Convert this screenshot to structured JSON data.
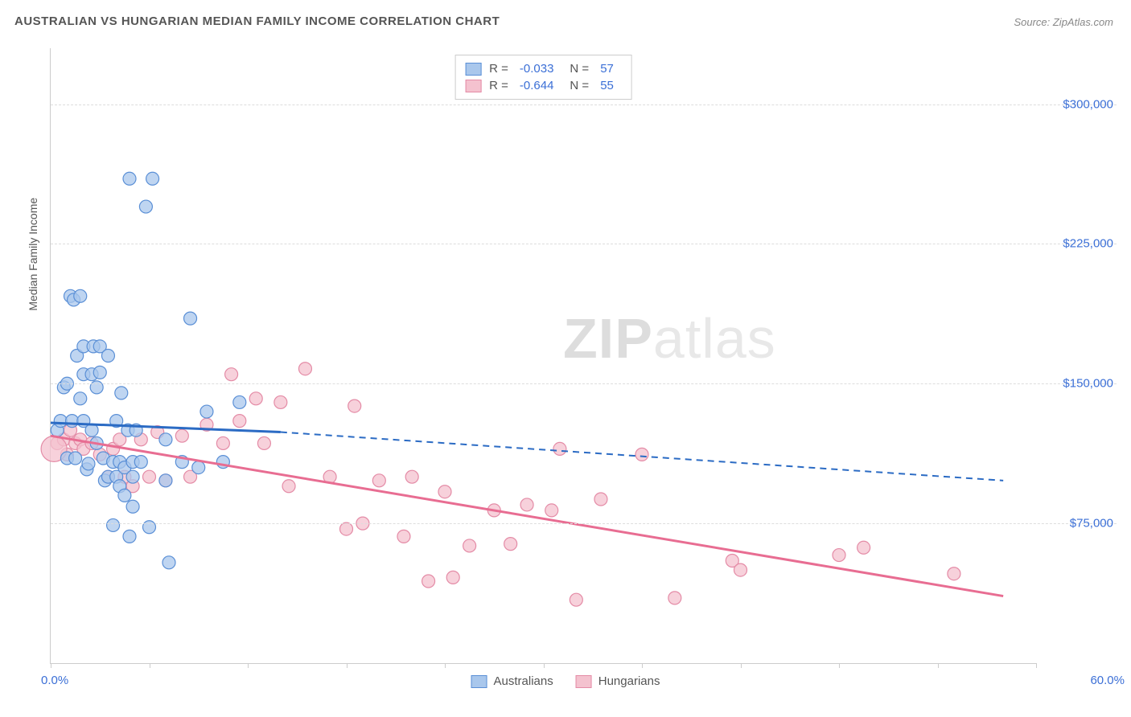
{
  "title": "AUSTRALIAN VS HUNGARIAN MEDIAN FAMILY INCOME CORRELATION CHART",
  "source": "Source: ZipAtlas.com",
  "watermark_a": "ZIP",
  "watermark_b": "atlas",
  "chart": {
    "type": "scatter",
    "y_axis_title": "Median Family Income",
    "xlim": [
      0,
      60
    ],
    "ylim": [
      0,
      330000
    ],
    "x_min_label": "0.0%",
    "x_max_label": "60.0%",
    "x_tick_positions": [
      0,
      6,
      12,
      18,
      24,
      30,
      36,
      42,
      48,
      54,
      60
    ],
    "y_gridlines": [
      {
        "value": 75000,
        "label": "$75,000"
      },
      {
        "value": 150000,
        "label": "$150,000"
      },
      {
        "value": 225000,
        "label": "$225,000"
      },
      {
        "value": 300000,
        "label": "$300,000"
      }
    ],
    "grid_color": "#dddddd",
    "axis_color": "#cccccc",
    "background_color": "#ffffff",
    "tick_label_color": "#3b6fd6",
    "axis_title_color": "#555555",
    "series": [
      {
        "name": "Australians",
        "marker_fill": "#a9c7ec",
        "marker_stroke": "#5a8fd6",
        "marker_radius": 8,
        "marker_opacity": 0.75,
        "stats": {
          "R": "-0.033",
          "N": "57"
        },
        "trend": {
          "solid": {
            "x1": 0,
            "y1": 129000,
            "x2": 14,
            "y2": 124000
          },
          "dashed": {
            "x1": 14,
            "y1": 124000,
            "x2": 58,
            "y2": 98000
          },
          "color": "#2b6bc4",
          "width": 3
        },
        "points": [
          [
            0.4,
            125000
          ],
          [
            0.6,
            130000
          ],
          [
            0.8,
            148000
          ],
          [
            1.0,
            110000
          ],
          [
            1.0,
            150000
          ],
          [
            1.2,
            197000
          ],
          [
            1.3,
            130000
          ],
          [
            1.4,
            195000
          ],
          [
            1.5,
            110000
          ],
          [
            1.6,
            165000
          ],
          [
            1.8,
            142000
          ],
          [
            1.8,
            197000
          ],
          [
            2.0,
            130000
          ],
          [
            2.0,
            155000
          ],
          [
            2.0,
            170000
          ],
          [
            2.2,
            104000
          ],
          [
            2.3,
            107000
          ],
          [
            2.5,
            125000
          ],
          [
            2.5,
            155000
          ],
          [
            2.6,
            170000
          ],
          [
            2.8,
            118000
          ],
          [
            2.8,
            148000
          ],
          [
            3.0,
            156000
          ],
          [
            3.0,
            170000
          ],
          [
            3.2,
            110000
          ],
          [
            3.3,
            98000
          ],
          [
            3.5,
            100000
          ],
          [
            3.5,
            165000
          ],
          [
            3.8,
            74000
          ],
          [
            3.8,
            108000
          ],
          [
            4.0,
            100000
          ],
          [
            4.0,
            130000
          ],
          [
            4.2,
            95000
          ],
          [
            4.2,
            108000
          ],
          [
            4.3,
            145000
          ],
          [
            4.5,
            90000
          ],
          [
            4.5,
            105000
          ],
          [
            4.7,
            125000
          ],
          [
            4.8,
            68000
          ],
          [
            5.0,
            84000
          ],
          [
            5.0,
            100000
          ],
          [
            5.0,
            108000
          ],
          [
            5.2,
            125000
          ],
          [
            5.5,
            108000
          ],
          [
            5.8,
            245000
          ],
          [
            6.0,
            73000
          ],
          [
            4.8,
            260000
          ],
          [
            6.2,
            260000
          ],
          [
            7.0,
            98000
          ],
          [
            7.0,
            120000
          ],
          [
            7.2,
            54000
          ],
          [
            8.0,
            108000
          ],
          [
            8.5,
            185000
          ],
          [
            9.0,
            105000
          ],
          [
            9.5,
            135000
          ],
          [
            10.5,
            108000
          ],
          [
            11.5,
            140000
          ]
        ]
      },
      {
        "name": "Hungarians",
        "marker_fill": "#f4c2cf",
        "marker_stroke": "#e48ba6",
        "marker_radius": 8,
        "marker_opacity": 0.75,
        "stats": {
          "R": "-0.644",
          "N": "55"
        },
        "trend": {
          "solid": {
            "x1": 0,
            "y1": 122000,
            "x2": 58,
            "y2": 36000
          },
          "dashed": null,
          "color": "#e86d92",
          "width": 3
        },
        "points": [
          [
            0.4,
            118000
          ],
          [
            0.8,
            120000
          ],
          [
            1.0,
            112000
          ],
          [
            1.2,
            125000
          ],
          [
            1.5,
            118000
          ],
          [
            1.8,
            120000
          ],
          [
            2.0,
            115000
          ],
          [
            2.5,
            118000
          ],
          [
            3.0,
            112000
          ],
          [
            3.5,
            100000
          ],
          [
            3.8,
            115000
          ],
          [
            4.2,
            120000
          ],
          [
            4.5,
            100000
          ],
          [
            5.0,
            95000
          ],
          [
            5.5,
            120000
          ],
          [
            6.0,
            100000
          ],
          [
            6.5,
            124000
          ],
          [
            7.0,
            98000
          ],
          [
            8.0,
            122000
          ],
          [
            8.5,
            100000
          ],
          [
            9.5,
            128000
          ],
          [
            10.5,
            118000
          ],
          [
            11.0,
            155000
          ],
          [
            11.5,
            130000
          ],
          [
            12.5,
            142000
          ],
          [
            13.0,
            118000
          ],
          [
            14.0,
            140000
          ],
          [
            14.5,
            95000
          ],
          [
            15.5,
            158000
          ],
          [
            17.0,
            100000
          ],
          [
            18.0,
            72000
          ],
          [
            18.5,
            138000
          ],
          [
            19.0,
            75000
          ],
          [
            20.0,
            98000
          ],
          [
            21.5,
            68000
          ],
          [
            22.0,
            100000
          ],
          [
            23.0,
            44000
          ],
          [
            24.0,
            92000
          ],
          [
            24.5,
            46000
          ],
          [
            25.5,
            63000
          ],
          [
            27.0,
            82000
          ],
          [
            28.0,
            64000
          ],
          [
            29.0,
            85000
          ],
          [
            30.5,
            82000
          ],
          [
            31.0,
            115000
          ],
          [
            32.0,
            34000
          ],
          [
            33.5,
            88000
          ],
          [
            36.0,
            112000
          ],
          [
            38.0,
            35000
          ],
          [
            41.5,
            55000
          ],
          [
            42.0,
            50000
          ],
          [
            48.0,
            58000
          ],
          [
            49.5,
            62000
          ],
          [
            55.0,
            48000
          ],
          [
            0.2,
            115000,
            16
          ]
        ]
      }
    ],
    "legend_top": {
      "r_label": "R =",
      "n_label": "N ="
    },
    "legend_bottom_labels": [
      "Australians",
      "Hungarians"
    ]
  }
}
